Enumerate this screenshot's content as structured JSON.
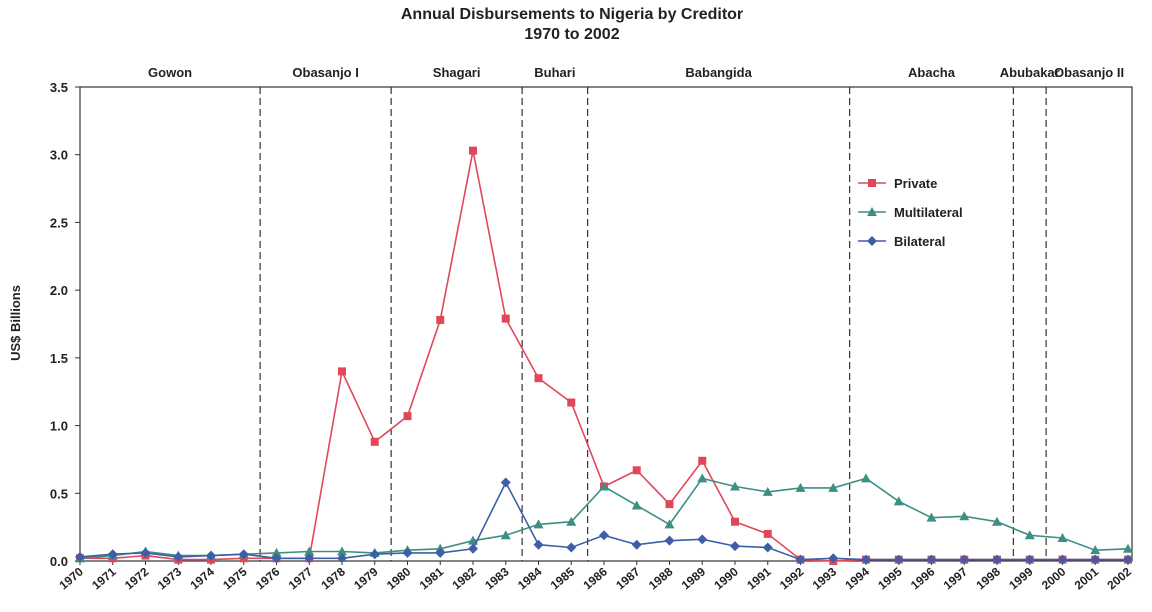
{
  "chart_data": {
    "type": "line",
    "title": "Annual Disbursements to Nigeria by Creditor",
    "subtitle": "1970 to 2002",
    "ylabel": "US$ Billions",
    "xlabel": "",
    "ylim": [
      0,
      3.5
    ],
    "yticks": [
      "0.0",
      "0.5",
      "1.0",
      "1.5",
      "2.0",
      "2.5",
      "3.0",
      "3.5"
    ],
    "x": [
      "1970",
      "1971",
      "1972",
      "1973",
      "1974",
      "1975",
      "1976",
      "1977",
      "1978",
      "1979",
      "1980",
      "1981",
      "1982",
      "1983",
      "1984",
      "1985",
      "1986",
      "1987",
      "1988",
      "1989",
      "1990",
      "1991",
      "1992",
      "1993",
      "1994",
      "1995",
      "1996",
      "1997",
      "1998",
      "1999",
      "2000",
      "2001",
      "2002"
    ],
    "legend_position": "top-right",
    "grid": false,
    "series": [
      {
        "name": "Private",
        "color": "#e0485a",
        "marker": "square",
        "values": [
          0.02,
          0.02,
          0.04,
          0.01,
          0.01,
          0.02,
          0.02,
          0.02,
          1.4,
          0.88,
          1.07,
          1.78,
          3.03,
          1.79,
          1.35,
          1.17,
          0.55,
          0.67,
          0.42,
          0.74,
          0.29,
          0.2,
          0.01,
          0.0,
          0.01,
          0.01,
          0.01,
          0.01,
          0.01,
          0.01,
          0.01,
          0.01,
          0.01
        ]
      },
      {
        "name": "Multilateral",
        "color": "#3e8f83",
        "marker": "triangle",
        "values": [
          0.02,
          0.04,
          0.07,
          0.04,
          0.04,
          0.05,
          0.06,
          0.07,
          0.07,
          0.06,
          0.08,
          0.09,
          0.15,
          0.19,
          0.27,
          0.29,
          0.55,
          0.41,
          0.27,
          0.61,
          0.55,
          0.51,
          0.54,
          0.54,
          0.61,
          0.44,
          0.32,
          0.33,
          0.29,
          0.19,
          0.17,
          0.08,
          0.09
        ]
      },
      {
        "name": "Bilateral",
        "color": "#3e5fa8",
        "marker": "diamond",
        "values": [
          0.03,
          0.05,
          0.06,
          0.03,
          0.04,
          0.05,
          0.02,
          0.02,
          0.02,
          0.05,
          0.06,
          0.06,
          0.09,
          0.58,
          0.12,
          0.1,
          0.19,
          0.12,
          0.15,
          0.16,
          0.11,
          0.1,
          0.01,
          0.02,
          0.01,
          0.01,
          0.01,
          0.01,
          0.01,
          0.01,
          0.01,
          0.01,
          0.01
        ]
      }
    ],
    "eras": [
      {
        "label": "Gowon",
        "start": "1970",
        "end": "1975"
      },
      {
        "label": "Obasanjo I",
        "start": "1976",
        "end": "1979"
      },
      {
        "label": "Shagari",
        "start": "1980",
        "end": "1983"
      },
      {
        "label": "Buhari",
        "start": "1984",
        "end": "1985"
      },
      {
        "label": "Babangida",
        "start": "1986",
        "end": "1993"
      },
      {
        "label": "Abacha",
        "start": "1994",
        "end": "1998"
      },
      {
        "label": "Abubakar",
        "start": "1999",
        "end": "1999"
      },
      {
        "label": "Obasanjo II",
        "start": "2000",
        "end": "2002"
      }
    ]
  }
}
